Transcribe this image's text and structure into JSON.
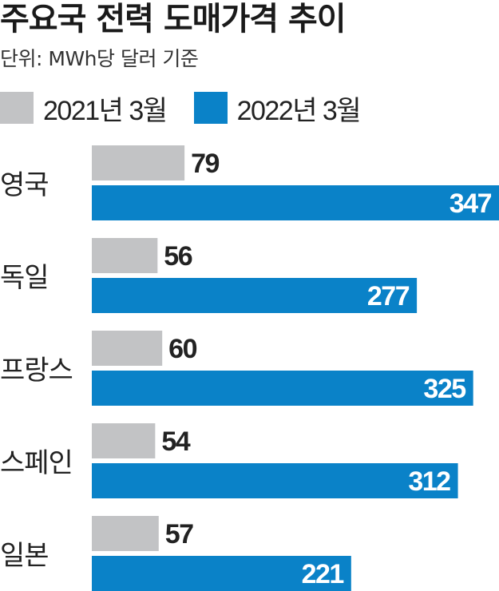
{
  "chart_data": {
    "type": "bar",
    "orientation": "horizontal",
    "title": "주요국 전력 도매가격 추이",
    "subtitle": "단위: MWh당 달러 기준",
    "categories": [
      "영국",
      "독일",
      "프랑스",
      "스페인",
      "일본"
    ],
    "series": [
      {
        "name": "2021년 3월",
        "color": "#c2c3c5",
        "values": [
          79,
          56,
          60,
          54,
          57
        ]
      },
      {
        "name": "2022년 3월",
        "color": "#0a82c8",
        "values": [
          347,
          277,
          325,
          312,
          221
        ]
      }
    ],
    "xlim": [
      0,
      347
    ],
    "grid": false,
    "legend": "top-left"
  }
}
